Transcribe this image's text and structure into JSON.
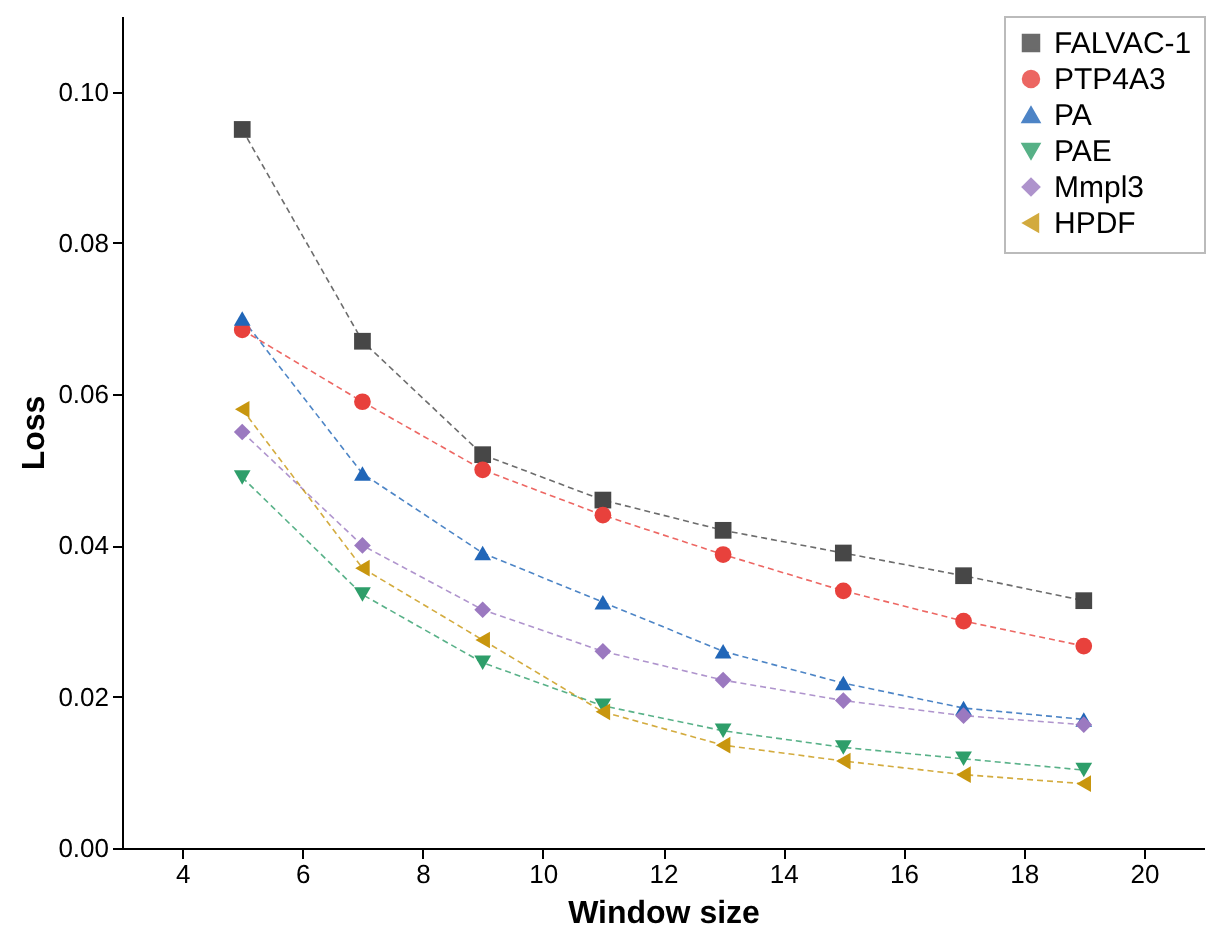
{
  "chart_data": {
    "type": "line",
    "xlabel": "Window size",
    "ylabel": "Loss",
    "x": [
      5,
      7,
      9,
      11,
      13,
      15,
      17,
      19
    ],
    "xlim": [
      3,
      21
    ],
    "xticks": [
      4,
      6,
      8,
      10,
      12,
      14,
      16,
      18,
      20
    ],
    "ylim": [
      0,
      0.11
    ],
    "yticks": [
      {
        "value": 0,
        "label": "0.00"
      },
      {
        "value": 0.02,
        "label": "0.02"
      },
      {
        "value": 0.04,
        "label": "0.04"
      },
      {
        "value": 0.06,
        "label": "0.06"
      },
      {
        "value": 0.08,
        "label": "0.08"
      },
      {
        "value": 0.1,
        "label": "0.10"
      }
    ],
    "grid": false,
    "legend": "top right",
    "line_style": "dashed",
    "series": [
      {
        "name": "FALVAC-1",
        "color": "#474747",
        "marker": "square",
        "values": [
          0.095,
          0.067,
          0.052,
          0.046,
          0.042,
          0.039,
          0.036,
          0.0327
        ]
      },
      {
        "name": "PTP4A3",
        "color": "#e8413c",
        "marker": "circle",
        "values": [
          0.0685,
          0.059,
          0.05,
          0.044,
          0.0388,
          0.034,
          0.03,
          0.0267
        ]
      },
      {
        "name": "PA",
        "color": "#2166b8",
        "marker": "triangle-up",
        "values": [
          0.07,
          0.0495,
          0.039,
          0.0325,
          0.026,
          0.0218,
          0.0185,
          0.017
        ]
      },
      {
        "name": "PAE",
        "color": "#2e9e6a",
        "marker": "triangle-down",
        "values": [
          0.049,
          0.0335,
          0.0245,
          0.0188,
          0.0155,
          0.0133,
          0.0118,
          0.0103
        ]
      },
      {
        "name": "Mmpl3",
        "color": "#9b79c0",
        "marker": "diamond",
        "values": [
          0.055,
          0.04,
          0.0315,
          0.026,
          0.0222,
          0.0195,
          0.0175,
          0.0163
        ]
      },
      {
        "name": "HPDF",
        "color": "#c8960e",
        "marker": "triangle-left",
        "values": [
          0.058,
          0.037,
          0.0275,
          0.018,
          0.0136,
          0.0115,
          0.0097,
          0.0085
        ]
      }
    ]
  }
}
